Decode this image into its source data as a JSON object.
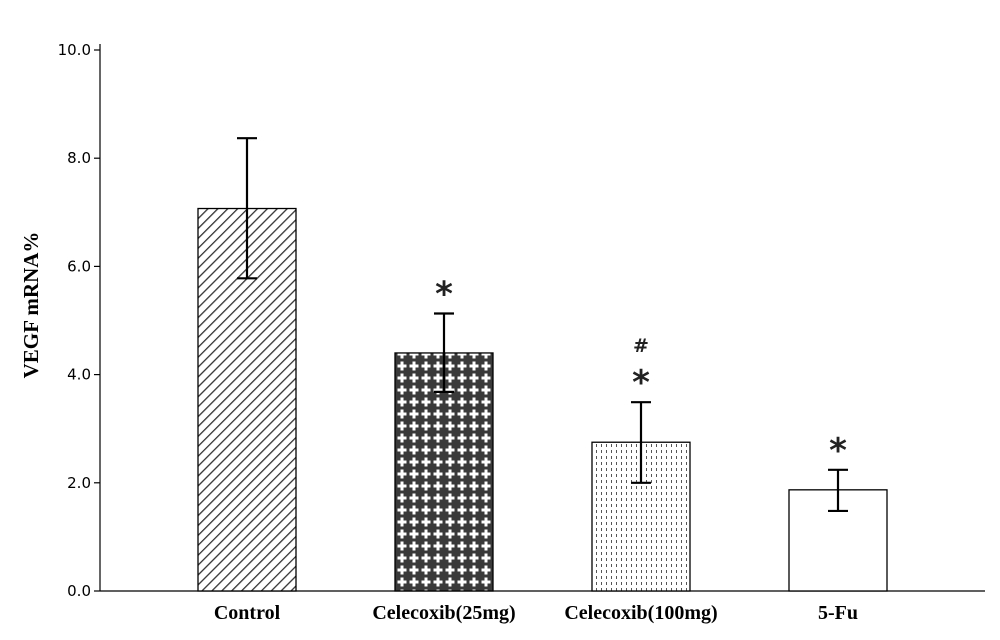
{
  "chart_data": {
    "type": "bar",
    "title": "",
    "xlabel": "",
    "ylabel": "VEGF mRNA%",
    "ylim": [
      0,
      10
    ],
    "yticks": [
      "0.0",
      "2.0",
      "4.0",
      "6.0",
      "8.0",
      "10.0"
    ],
    "grid": false,
    "categories": [
      "Control",
      "Celecoxib(25mg)",
      "Celecoxib(100mg)",
      "5-Fu"
    ],
    "values": [
      7.07,
      4.4,
      2.75,
      1.87
    ],
    "error_low": [
      5.78,
      3.68,
      2.0,
      1.48
    ],
    "error_high": [
      8.37,
      5.13,
      3.49,
      2.24
    ],
    "patterns": [
      "diagonal-hatch",
      "cross-plus",
      "dotted-vertical",
      "plain"
    ],
    "annotations": [
      {
        "category": "Celecoxib(25mg)",
        "markers": [
          "*"
        ]
      },
      {
        "category": "Celecoxib(100mg)",
        "markers": [
          "#",
          "*"
        ]
      },
      {
        "category": "5-Fu",
        "markers": [
          "*"
        ]
      }
    ]
  },
  "colors": {
    "bar_stroke": "#000000",
    "hatch": "#333333",
    "bar_fill": "#ffffff",
    "axis": "#000000"
  }
}
